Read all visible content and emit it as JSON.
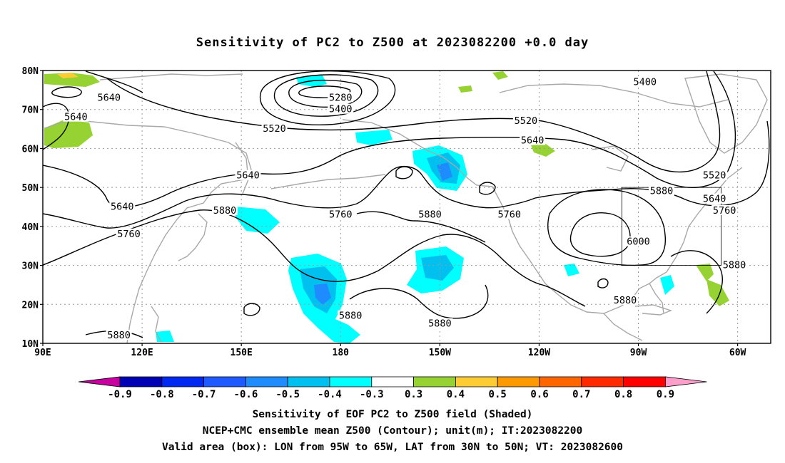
{
  "title": "Sensitivity of PC2 to Z500 at 2023082200 +0.0 day",
  "axes": {
    "lat_labels": [
      "80N",
      "70N",
      "60N",
      "50N",
      "40N",
      "30N",
      "20N",
      "10N"
    ],
    "lon_labels": [
      "90E",
      "120E",
      "150E",
      "180",
      "150W",
      "120W",
      "90W",
      "60W"
    ]
  },
  "contour_labels": [
    {
      "text": "5640",
      "lon": 110,
      "lat": 73
    },
    {
      "text": "5640",
      "lon": 100,
      "lat": 68
    },
    {
      "text": "5280",
      "lon": 180,
      "lat": 73
    },
    {
      "text": "5400",
      "lon": 180,
      "lat": 70
    },
    {
      "text": "5400",
      "lon": -88,
      "lat": 77
    },
    {
      "text": "5520",
      "lon": 160,
      "lat": 65
    },
    {
      "text": "5520",
      "lon": -124,
      "lat": 67
    },
    {
      "text": "5640",
      "lon": -122,
      "lat": 62
    },
    {
      "text": "5520",
      "lon": -67,
      "lat": 53
    },
    {
      "text": "5640",
      "lon": -67,
      "lat": 47
    },
    {
      "text": "5880",
      "lon": -83,
      "lat": 49
    },
    {
      "text": "5760",
      "lon": -64,
      "lat": 44
    },
    {
      "text": "5640",
      "lon": 152,
      "lat": 53
    },
    {
      "text": "5640",
      "lon": 114,
      "lat": 45
    },
    {
      "text": "5880",
      "lon": 145,
      "lat": 44
    },
    {
      "text": "5760",
      "lon": 180,
      "lat": 43
    },
    {
      "text": "5880",
      "lon": -153,
      "lat": 43
    },
    {
      "text": "5760",
      "lon": -129,
      "lat": 43
    },
    {
      "text": "5760",
      "lon": 116,
      "lat": 38
    },
    {
      "text": "6000",
      "lon": -90,
      "lat": 36
    },
    {
      "text": "5880",
      "lon": -61,
      "lat": 30
    },
    {
      "text": "5880",
      "lon": -94,
      "lat": 21
    },
    {
      "text": "5880",
      "lon": -150,
      "lat": 15
    },
    {
      "text": "5880",
      "lon": 183,
      "lat": 17
    },
    {
      "text": "5880",
      "lon": 113,
      "lat": 12
    }
  ],
  "valid_box": {
    "lon_min": -95,
    "lon_max": -65,
    "lat_min": 30,
    "lat_max": 50
  },
  "colorbar": {
    "labels": [
      "-0.9",
      "-0.8",
      "-0.7",
      "-0.6",
      "-0.5",
      "-0.4",
      "-0.3",
      "0.3",
      "0.4",
      "0.5",
      "0.6",
      "0.7",
      "0.8",
      "0.9"
    ],
    "colors": [
      "#0000b4",
      "#0028f0",
      "#1e5aff",
      "#1e8cff",
      "#00c0f0",
      "#00ffff",
      "#ffffff",
      "#96d232",
      "#ffcc33",
      "#ff9900",
      "#ff6600",
      "#ff2a00",
      "#ff0000"
    ],
    "low_end_color": "#c800a0",
    "high_end_color": "#ff9ecb"
  },
  "footer": {
    "line1": "Sensitivity of EOF PC2 to Z500 field (Shaded)",
    "line2": "NCEP+CMC ensemble mean Z500 (Contour); unit(m); IT:2023082200",
    "line3": "Valid area (box): LON from 95W to 65W, LAT from 30N to 50N; VT: 2023082600"
  }
}
